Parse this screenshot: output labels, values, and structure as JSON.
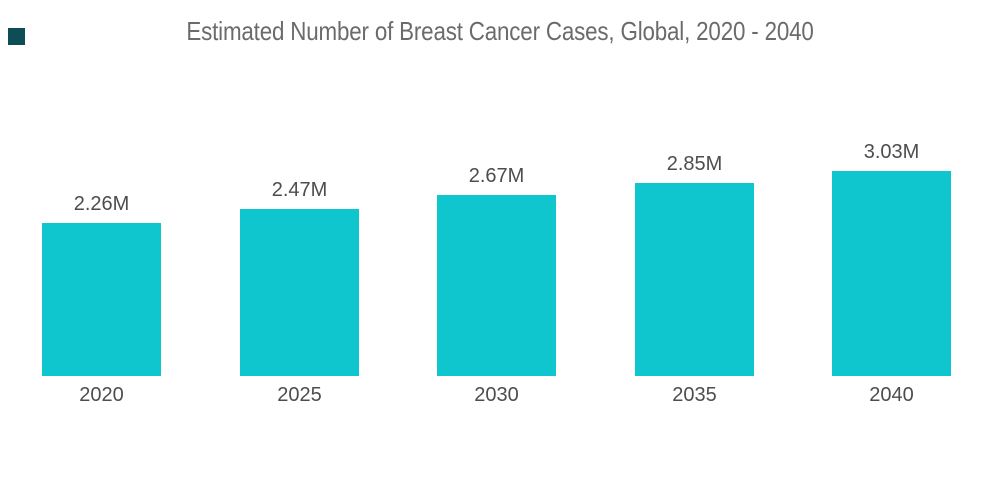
{
  "chart_data": {
    "type": "bar",
    "title": "Estimated Number of Breast Cancer Cases, Global, 2020 - 2040",
    "categories": [
      "2020",
      "2025",
      "2030",
      "2035",
      "2040"
    ],
    "values": [
      2.26,
      2.47,
      2.67,
      2.85,
      3.03
    ],
    "value_labels": [
      "2.26M",
      "2.47M",
      "2.67M",
      "2.85M",
      "3.03M"
    ],
    "unit": "M",
    "xlabel": "",
    "ylabel": "",
    "ylim": [
      0,
      3.2
    ],
    "grid": false,
    "legend": "none",
    "axes_visible": false,
    "bar_color": "#0FC6CE",
    "title_color": "#6B6B6B",
    "label_color": "#4D4D4D",
    "background_color": "#FFFFFF",
    "brand_mark_color": "#0D4D56"
  }
}
